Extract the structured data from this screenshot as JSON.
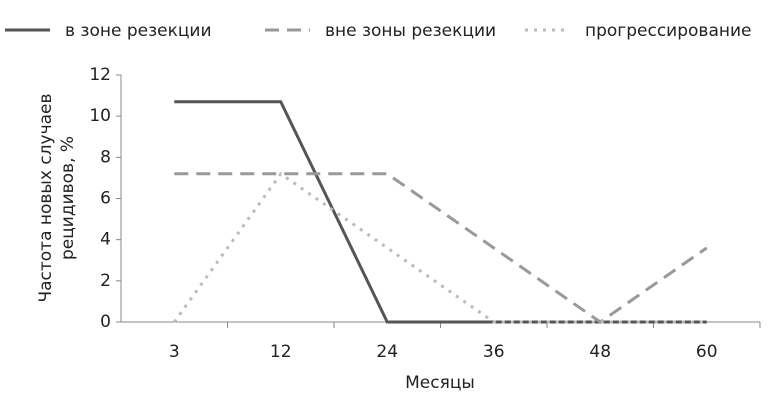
{
  "chart_data": {
    "type": "line",
    "categories": [
      "3",
      "12",
      "24",
      "36",
      "48",
      "60"
    ],
    "series": [
      {
        "name": "в зоне резекции",
        "color": "#555555",
        "dash": "solid",
        "values": [
          10.7,
          10.7,
          0,
          0,
          0,
          0
        ]
      },
      {
        "name": "вне зоны резекции",
        "color": "#999999",
        "dash": "dashed",
        "values": [
          7.2,
          7.2,
          7.2,
          3.6,
          0,
          3.6
        ]
      },
      {
        "name": "прогрессирование",
        "color": "#bbbbbb",
        "dash": "dotted",
        "values": [
          0,
          7.2,
          3.6,
          0,
          0,
          0
        ]
      }
    ],
    "ylim": [
      0,
      12
    ],
    "yticks": [
      0,
      2,
      4,
      6,
      8,
      10,
      12
    ],
    "grid": false,
    "xlabel": "Месяцы",
    "ylabel": [
      "Частота новых случаев",
      "рецидивов, %"
    ],
    "legend": "top"
  }
}
